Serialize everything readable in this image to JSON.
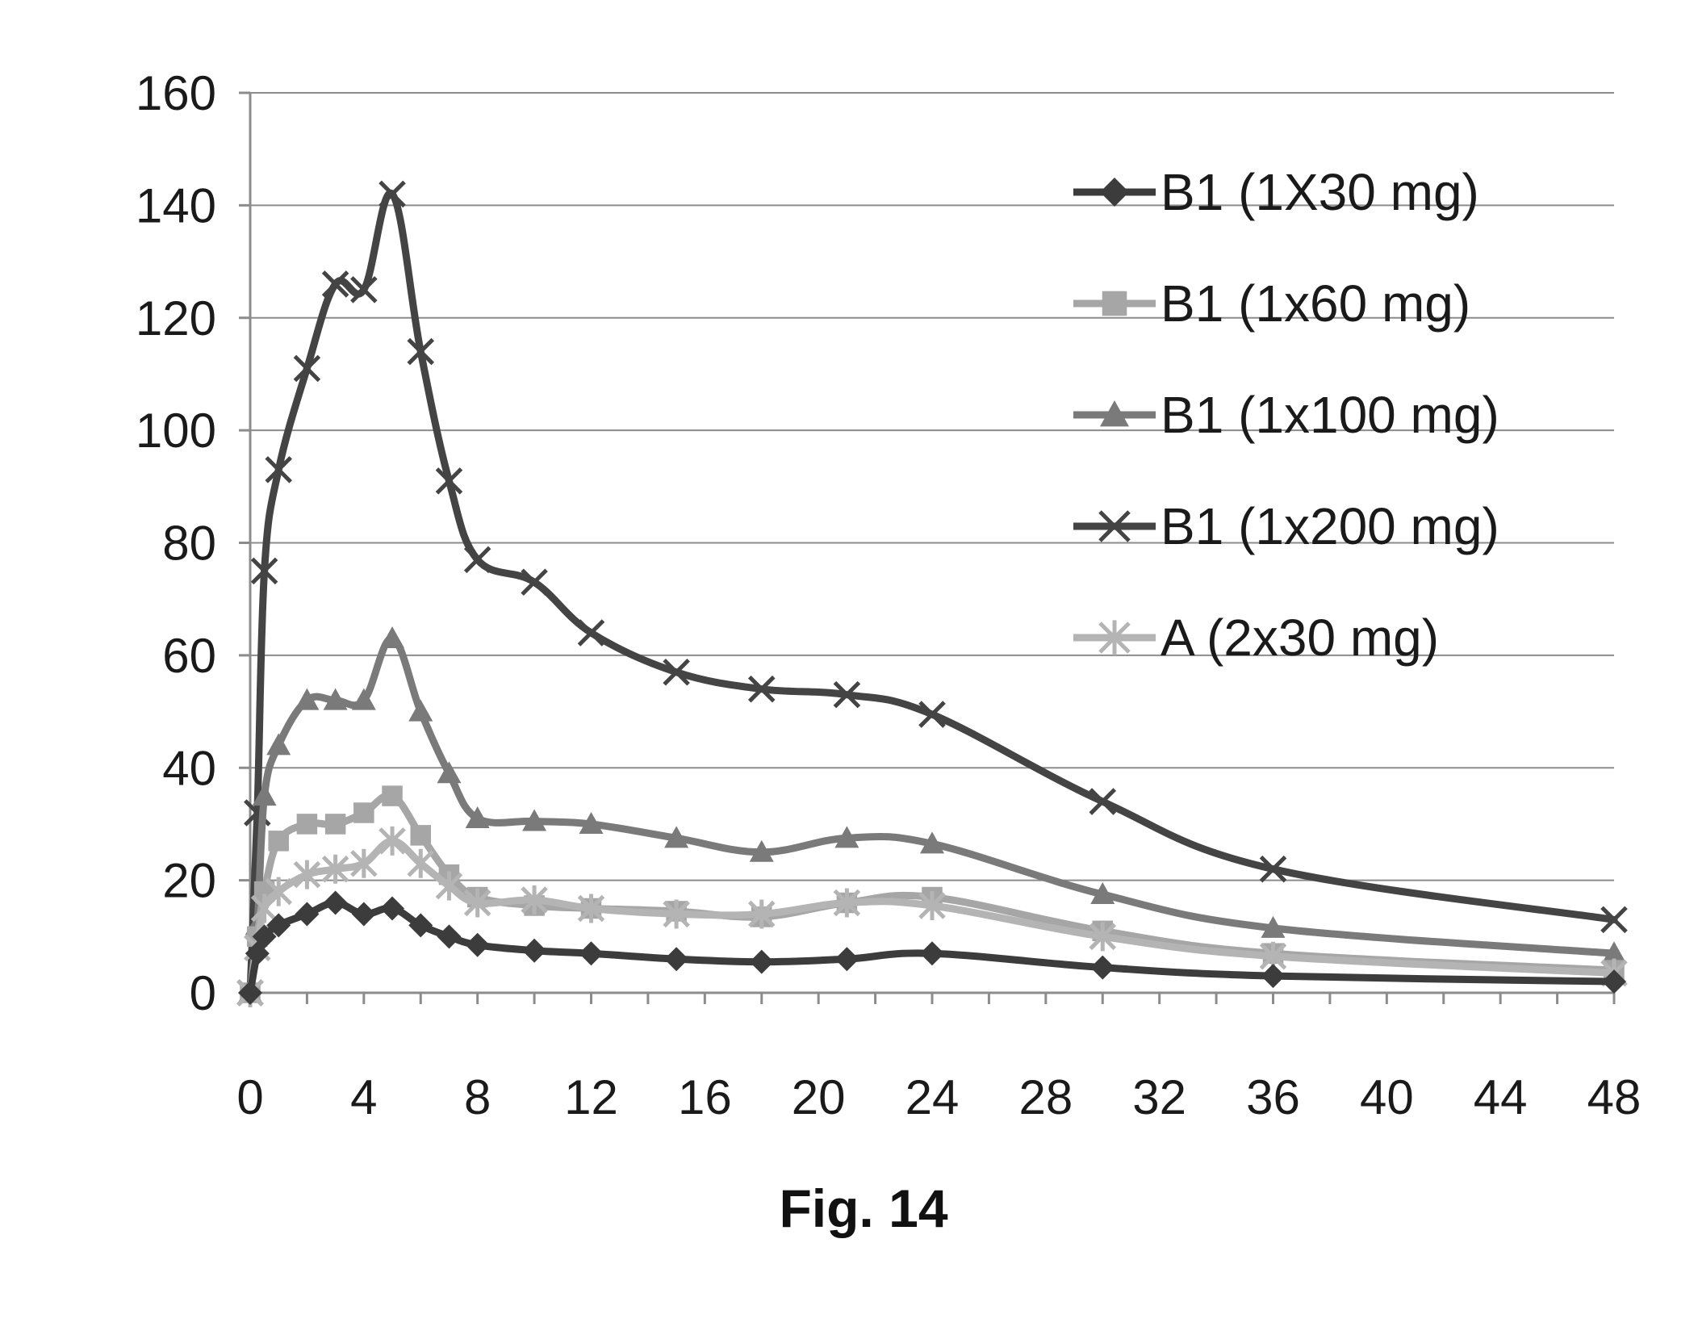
{
  "figure": {
    "caption": "Fig. 14"
  },
  "chart_data": {
    "type": "line",
    "title": "",
    "xlabel": "",
    "ylabel": "",
    "xlim": [
      0,
      48
    ],
    "ylim": [
      0,
      160
    ],
    "x_ticks": [
      0,
      4,
      8,
      12,
      16,
      20,
      24,
      28,
      32,
      36,
      40,
      44,
      48
    ],
    "y_ticks": [
      0,
      20,
      40,
      60,
      80,
      100,
      120,
      140,
      160
    ],
    "grid": {
      "horizontal": true,
      "vertical": false
    },
    "legend_position": "top-right",
    "series": [
      {
        "name": "B1 (1X30 mg)",
        "color": "#3c3c3c",
        "marker": "diamond",
        "x": [
          0,
          0.25,
          0.5,
          1,
          2,
          3,
          4,
          5,
          6,
          7,
          8,
          10,
          12,
          15,
          18,
          21,
          24,
          30,
          36,
          48
        ],
        "y": [
          0,
          7,
          10,
          12,
          14,
          16,
          14,
          15,
          12,
          10,
          8.5,
          7.5,
          7,
          6,
          5.5,
          6,
          7,
          4.5,
          3,
          2
        ]
      },
      {
        "name": "B1 (1x60 mg)",
        "color": "#a6a6a6",
        "marker": "square",
        "x": [
          0,
          0.25,
          0.5,
          1,
          2,
          3,
          4,
          5,
          6,
          7,
          8,
          10,
          12,
          15,
          18,
          21,
          24,
          30,
          36,
          48
        ],
        "y": [
          0,
          10,
          18,
          27,
          30,
          30,
          32,
          35,
          28,
          21,
          17,
          15.5,
          15,
          14.5,
          13.5,
          16,
          17,
          11,
          7,
          4
        ]
      },
      {
        "name": "B1 (1x100 mg)",
        "color": "#7a7a7a",
        "marker": "triangle",
        "x": [
          0,
          0.25,
          0.5,
          1,
          2,
          3,
          4,
          5,
          6,
          7,
          8,
          10,
          12,
          15,
          18,
          21,
          24,
          30,
          36,
          48
        ],
        "y": [
          0,
          12,
          35,
          44,
          52,
          52,
          52,
          63,
          50,
          39,
          31,
          30.5,
          30,
          27.5,
          25,
          27.5,
          26.5,
          17.5,
          11.5,
          7
        ]
      },
      {
        "name": "B1 (1x200 mg)",
        "color": "#444444",
        "marker": "x",
        "x": [
          0,
          0.25,
          0.5,
          1,
          2,
          3,
          4,
          5,
          6,
          7,
          8,
          10,
          12,
          15,
          18,
          21,
          24,
          30,
          36,
          48
        ],
        "y": [
          0,
          32,
          75,
          93,
          111,
          126,
          125,
          142,
          114,
          91,
          77,
          73,
          64,
          57,
          54,
          53,
          49.5,
          34,
          22,
          13
        ]
      },
      {
        "name": "A (2x30 mg)",
        "color": "#b4b4b4",
        "marker": "asterisk",
        "x": [
          0,
          0.25,
          0.5,
          1,
          2,
          3,
          4,
          5,
          6,
          7,
          8,
          10,
          12,
          15,
          18,
          21,
          24,
          30,
          36,
          48
        ],
        "y": [
          0,
          8,
          15,
          18,
          21,
          22,
          23,
          27,
          23,
          19,
          16,
          16.5,
          15,
          14,
          14,
          16,
          15.5,
          10,
          6.5,
          3.5
        ]
      }
    ]
  }
}
